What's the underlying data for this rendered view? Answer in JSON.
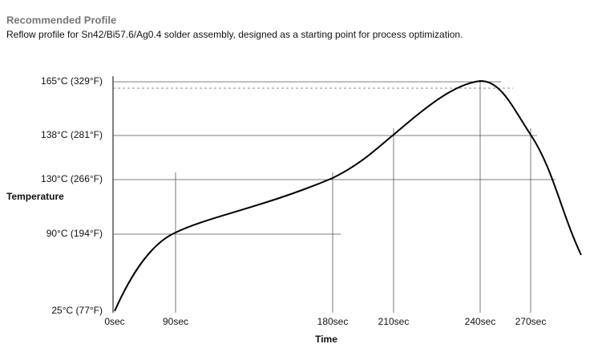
{
  "header": {
    "title": "Recommended Profile",
    "subtitle": "Reflow profile for Sn42/Bi57.6/Ag0.4 solder assembly, designed as a starting point for process optimization."
  },
  "axes": {
    "y_label": "Temperature",
    "x_label": "Time",
    "y_ticks": [
      "165°C (329°F)",
      "138°C (281°F)",
      "130°C (266°F)",
      "90°C (194°F)",
      "25°C (77°F)"
    ],
    "x_ticks": [
      "0sec",
      "90sec",
      "180sec",
      "210sec",
      "240sec",
      "270sec"
    ]
  }
}
